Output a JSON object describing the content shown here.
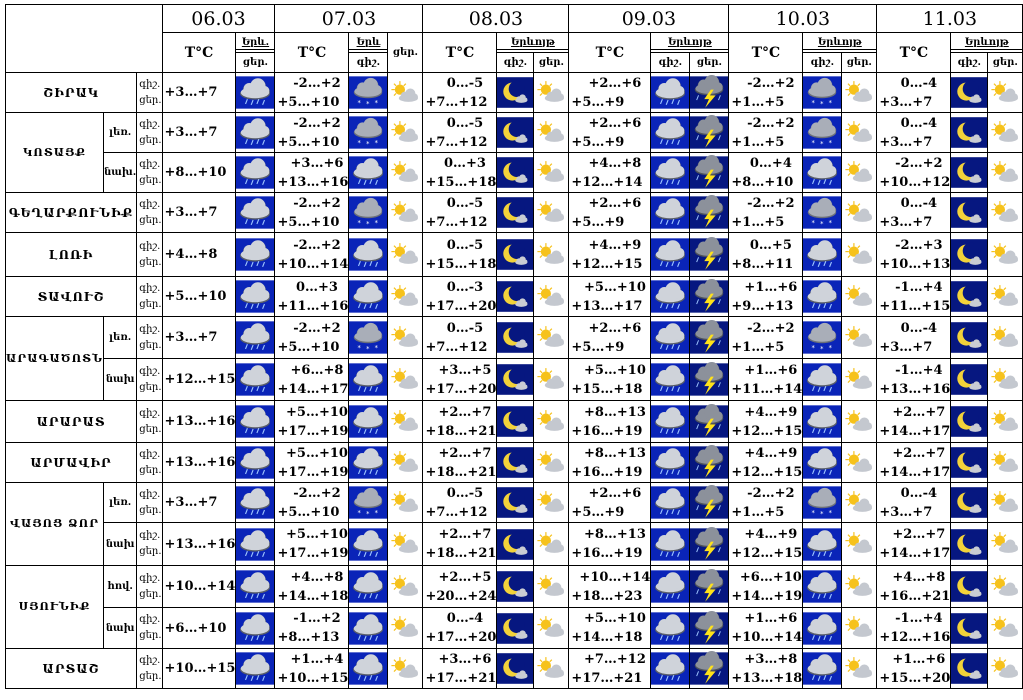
{
  "header": {
    "dates": [
      "06.03",
      "07.03",
      "08.03",
      "09.03",
      "10.03",
      "11.03"
    ],
    "temp_unit": "T°C",
    "col_label_short": "Երև.",
    "col_label_short2": "Երև",
    "col_label_long": "Երևոյթ",
    "sub_day": "գիշ.",
    "sub_night": "ցեր."
  },
  "row_labels": {
    "day": "գիշ.",
    "night": "ցեր."
  },
  "regions": [
    {
      "name": "ՇԻՐԱԿ",
      "sub": "",
      "days": [
        {
          "t1": "",
          "t2": "+3…+7",
          "icons": [
            "cloud-rain"
          ]
        },
        {
          "t1": "-2…+2",
          "t2": "+5…+10",
          "icons": [
            "snow-cloud",
            "sun-cloud"
          ]
        },
        {
          "t1": "0…-5",
          "t2": "+7…+12",
          "icons": [
            "moon",
            "sun-cloud"
          ]
        },
        {
          "t1": "+2…+6",
          "t2": "+5…+9",
          "icons": [
            "cloud-rain",
            "storm"
          ]
        },
        {
          "t1": "-2…+2",
          "t2": "+1…+5",
          "icons": [
            "snow-cloud",
            "sun-cloud"
          ]
        },
        {
          "t1": "0…-4",
          "t2": "+3…+7",
          "icons": [
            "moon",
            "sun-cloud"
          ]
        }
      ]
    },
    {
      "name": "ԿՈՏԱՅՔ",
      "sub": "լեռ.",
      "days": [
        {
          "t1": "",
          "t2": "+3…+7",
          "icons": [
            "cloud-rain"
          ]
        },
        {
          "t1": "-2…+2",
          "t2": "+5…+10",
          "icons": [
            "snow-cloud",
            "sun-cloud"
          ]
        },
        {
          "t1": "0…-5",
          "t2": "+7…+12",
          "icons": [
            "moon",
            "sun-cloud"
          ]
        },
        {
          "t1": "+2…+6",
          "t2": "+5…+9",
          "icons": [
            "cloud-rain",
            "storm"
          ]
        },
        {
          "t1": "-2…+2",
          "t2": "+1…+5",
          "icons": [
            "snow-cloud",
            "sun-cloud"
          ]
        },
        {
          "t1": "0…-4",
          "t2": "+3…+7",
          "icons": [
            "moon",
            "sun-cloud"
          ]
        }
      ]
    },
    {
      "name": "",
      "sub": "նախ.",
      "days": [
        {
          "t1": "",
          "t2": "+8…+10",
          "icons": [
            "cloud-rain"
          ]
        },
        {
          "t1": "+3…+6",
          "t2": "+13…+16",
          "icons": [
            "cloud-rain",
            "sun-cloud"
          ]
        },
        {
          "t1": "0…+3",
          "t2": "+15…+18",
          "icons": [
            "moon",
            "sun-cloud"
          ]
        },
        {
          "t1": "+4…+8",
          "t2": "+12…+14",
          "icons": [
            "cloud-rain",
            "storm"
          ]
        },
        {
          "t1": "0…+4",
          "t2": "+8…+10",
          "icons": [
            "cloud-rain",
            "sun-cloud"
          ]
        },
        {
          "t1": "-2…+2",
          "t2": "+10…+12",
          "icons": [
            "moon",
            "sun-cloud"
          ]
        }
      ]
    },
    {
      "name": "ԳԵՂԱՐՔՈՒՆԻՔ",
      "sub": "",
      "days": [
        {
          "t1": "",
          "t2": "+3…+7",
          "icons": [
            "cloud-rain"
          ]
        },
        {
          "t1": "-2…+2",
          "t2": "+5…+10",
          "icons": [
            "snow-cloud",
            "sun-cloud"
          ]
        },
        {
          "t1": "0…-5",
          "t2": "+7…+12",
          "icons": [
            "moon",
            "sun-cloud"
          ]
        },
        {
          "t1": "+2…+6",
          "t2": "+5…+9",
          "icons": [
            "cloud-rain",
            "storm"
          ]
        },
        {
          "t1": "-2…+2",
          "t2": "+1…+5",
          "icons": [
            "snow-cloud",
            "sun-cloud"
          ]
        },
        {
          "t1": "0…-4",
          "t2": "+3…+7",
          "icons": [
            "moon",
            "sun-cloud"
          ]
        }
      ]
    },
    {
      "name": "ԼՈՌԻ",
      "sub": "",
      "days": [
        {
          "t1": "",
          "t2": "+4…+8",
          "icons": [
            "cloud-rain"
          ]
        },
        {
          "t1": "-2…+2",
          "t2": "+10…+14",
          "icons": [
            "cloud-rain",
            "sun-cloud"
          ]
        },
        {
          "t1": "0…-5",
          "t2": "+15…+18",
          "icons": [
            "moon",
            "sun-cloud"
          ]
        },
        {
          "t1": "+4…+9",
          "t2": "+12…+15",
          "icons": [
            "cloud-rain",
            "storm"
          ]
        },
        {
          "t1": "0…+5",
          "t2": "+8…+11",
          "icons": [
            "cloud-rain",
            "sun-cloud"
          ]
        },
        {
          "t1": "-2…+3",
          "t2": "+10…+13",
          "icons": [
            "moon",
            "sun-cloud"
          ]
        }
      ]
    },
    {
      "name": "ՏԱՎՈՒՇ",
      "sub": "",
      "days": [
        {
          "t1": "",
          "t2": "+5…+10",
          "icons": [
            "cloud-rain"
          ]
        },
        {
          "t1": "0…+3",
          "t2": "+11…+16",
          "icons": [
            "cloud-rain",
            "sun-cloud"
          ]
        },
        {
          "t1": "0…-3",
          "t2": "+17…+20",
          "icons": [
            "moon",
            "sun-cloud"
          ]
        },
        {
          "t1": "+5…+10",
          "t2": "+13…+17",
          "icons": [
            "cloud-rain",
            "storm"
          ]
        },
        {
          "t1": "+1…+6",
          "t2": "+9…+13",
          "icons": [
            "cloud-rain",
            "sun-cloud"
          ]
        },
        {
          "t1": "-1…+4",
          "t2": "+11…+15",
          "icons": [
            "moon",
            "sun-cloud"
          ]
        }
      ]
    },
    {
      "name": "ԱՐԱԳԱԾՈՏՆ",
      "sub": "լեռ.",
      "days": [
        {
          "t1": "",
          "t2": "+3…+7",
          "icons": [
            "cloud-rain"
          ]
        },
        {
          "t1": "-2…+2",
          "t2": "+5…+10",
          "icons": [
            "snow-cloud",
            "sun-cloud"
          ]
        },
        {
          "t1": "0…-5",
          "t2": "+7…+12",
          "icons": [
            "moon",
            "sun-cloud"
          ]
        },
        {
          "t1": "+2…+6",
          "t2": "+5…+9",
          "icons": [
            "cloud-rain",
            "storm"
          ]
        },
        {
          "t1": "-2…+2",
          "t2": "+1…+5",
          "icons": [
            "snow-cloud",
            "sun-cloud"
          ]
        },
        {
          "t1": "0…-4",
          "t2": "+3…+7",
          "icons": [
            "moon",
            "sun-cloud"
          ]
        }
      ]
    },
    {
      "name": "",
      "sub": "նախ",
      "days": [
        {
          "t1": "",
          "t2": "+12…+15",
          "icons": [
            "cloud-rain"
          ]
        },
        {
          "t1": "+6…+8",
          "t2": "+14…+17",
          "icons": [
            "cloud-rain",
            "sun-cloud"
          ]
        },
        {
          "t1": "+3…+5",
          "t2": "+17…+20",
          "icons": [
            "moon",
            "sun-cloud"
          ]
        },
        {
          "t1": "+5…+10",
          "t2": "+15…+18",
          "icons": [
            "cloud-rain",
            "storm"
          ]
        },
        {
          "t1": "+1…+6",
          "t2": "+11…+14",
          "icons": [
            "cloud-rain",
            "sun-cloud"
          ]
        },
        {
          "t1": "-1…+4",
          "t2": "+13…+16",
          "icons": [
            "moon",
            "sun-cloud"
          ]
        }
      ]
    },
    {
      "name": "ԱՐԱՐԱՏ",
      "sub": "",
      "days": [
        {
          "t1": "",
          "t2": "+13…+16",
          "icons": [
            "cloud-rain"
          ]
        },
        {
          "t1": "+5…+10",
          "t2": "+17…+19",
          "icons": [
            "cloud-rain",
            "sun-cloud"
          ]
        },
        {
          "t1": "+2…+7",
          "t2": "+18…+21",
          "icons": [
            "moon",
            "sun-cloud"
          ]
        },
        {
          "t1": "+8…+13",
          "t2": "+16…+19",
          "icons": [
            "cloud-rain",
            "storm"
          ]
        },
        {
          "t1": "+4…+9",
          "t2": "+12…+15",
          "icons": [
            "cloud-rain",
            "sun-cloud"
          ]
        },
        {
          "t1": "+2…+7",
          "t2": "+14…+17",
          "icons": [
            "moon",
            "sun-cloud"
          ]
        }
      ]
    },
    {
      "name": "ԱՐՄԱՎԻՐ",
      "sub": "",
      "days": [
        {
          "t1": "",
          "t2": "+13…+16",
          "icons": [
            "cloud-rain"
          ]
        },
        {
          "t1": "+5…+10",
          "t2": "+17…+19",
          "icons": [
            "cloud-rain",
            "sun-cloud"
          ]
        },
        {
          "t1": "+2…+7",
          "t2": "+18…+21",
          "icons": [
            "moon",
            "sun-cloud"
          ]
        },
        {
          "t1": "+8…+13",
          "t2": "+16…+19",
          "icons": [
            "cloud-rain",
            "storm"
          ]
        },
        {
          "t1": "+4…+9",
          "t2": "+12…+15",
          "icons": [
            "cloud-rain",
            "sun-cloud"
          ]
        },
        {
          "t1": "+2…+7",
          "t2": "+14…+17",
          "icons": [
            "moon",
            "sun-cloud"
          ]
        }
      ]
    },
    {
      "name": "ՎԱՅՈՑ ՁՈՐ",
      "sub": "լեռ.",
      "days": [
        {
          "t1": "",
          "t2": "+3…+7",
          "icons": [
            "cloud-rain"
          ]
        },
        {
          "t1": "-2…+2",
          "t2": "+5…+10",
          "icons": [
            "snow-cloud",
            "sun-cloud"
          ]
        },
        {
          "t1": "0…-5",
          "t2": "+7…+12",
          "icons": [
            "moon",
            "sun-cloud"
          ]
        },
        {
          "t1": "+2…+6",
          "t2": "+5…+9",
          "icons": [
            "cloud-rain",
            "storm"
          ]
        },
        {
          "t1": "-2…+2",
          "t2": "+1…+5",
          "icons": [
            "snow-cloud",
            "sun-cloud"
          ]
        },
        {
          "t1": "0…-4",
          "t2": "+3…+7",
          "icons": [
            "moon",
            "sun-cloud"
          ]
        }
      ]
    },
    {
      "name": "",
      "sub": "նախ",
      "days": [
        {
          "t1": "",
          "t2": "+13…+16",
          "icons": [
            "cloud-rain"
          ]
        },
        {
          "t1": "+5…+10",
          "t2": "+17…+19",
          "icons": [
            "cloud-rain",
            "sun-cloud"
          ]
        },
        {
          "t1": "+2…+7",
          "t2": "+18…+21",
          "icons": [
            "moon",
            "sun-cloud"
          ]
        },
        {
          "t1": "+8…+13",
          "t2": "+16…+19",
          "icons": [
            "cloud-rain",
            "storm"
          ]
        },
        {
          "t1": "+4…+9",
          "t2": "+12…+15",
          "icons": [
            "cloud-rain",
            "sun-cloud"
          ]
        },
        {
          "t1": "+2…+7",
          "t2": "+14…+17",
          "icons": [
            "moon",
            "sun-cloud"
          ]
        }
      ]
    },
    {
      "name": "ՍՅՈՒՆԻՔ",
      "sub": "հով.",
      "days": [
        {
          "t1": "",
          "t2": "+10…+14",
          "icons": [
            "cloud-rain"
          ]
        },
        {
          "t1": "+4…+8",
          "t2": "+14…+18",
          "icons": [
            "cloud-rain",
            "sun-cloud"
          ]
        },
        {
          "t1": "+2…+5",
          "t2": "+20…+24",
          "icons": [
            "moon",
            "sun-cloud"
          ]
        },
        {
          "t1": "+10…+14",
          "t2": "+18…+23",
          "icons": [
            "cloud-rain",
            "storm"
          ]
        },
        {
          "t1": "+6…+10",
          "t2": "+14…+19",
          "icons": [
            "cloud-rain",
            "sun-cloud"
          ]
        },
        {
          "t1": "+4…+8",
          "t2": "+16…+21",
          "icons": [
            "moon",
            "sun-cloud"
          ]
        }
      ]
    },
    {
      "name": "",
      "sub": "նախ",
      "days": [
        {
          "t1": "",
          "t2": "+6…+10",
          "icons": [
            "cloud-rain"
          ]
        },
        {
          "t1": "-1…+2",
          "t2": "+8…+13",
          "icons": [
            "cloud-rain",
            "sun-cloud"
          ]
        },
        {
          "t1": "0…-4",
          "t2": "+17…+20",
          "icons": [
            "moon",
            "sun-cloud"
          ]
        },
        {
          "t1": "+5…+10",
          "t2": "+14…+18",
          "icons": [
            "cloud-rain",
            "storm"
          ]
        },
        {
          "t1": "+1…+6",
          "t2": "+10…+14",
          "icons": [
            "cloud-rain",
            "sun-cloud"
          ]
        },
        {
          "t1": "-1…+4",
          "t2": "+12…+16",
          "icons": [
            "moon",
            "sun-cloud"
          ]
        }
      ]
    },
    {
      "name": "ԱՐՏԱՇ",
      "sub": "",
      "days": [
        {
          "t1": "",
          "t2": "+10…+15",
          "icons": [
            "cloud-rain"
          ]
        },
        {
          "t1": "+1…+4",
          "t2": "+10…+15",
          "icons": [
            "cloud-rain",
            "sun-cloud"
          ]
        },
        {
          "t1": "+3…+6",
          "t2": "+17…+21",
          "icons": [
            "moon",
            "sun-cloud"
          ]
        },
        {
          "t1": "+7…+12",
          "t2": "+17…+21",
          "icons": [
            "cloud-rain",
            "storm"
          ]
        },
        {
          "t1": "+3…+8",
          "t2": "+13…+18",
          "icons": [
            "cloud-rain",
            "sun-cloud"
          ]
        },
        {
          "t1": "+1…+6",
          "t2": "+15…+20",
          "icons": [
            "moon",
            "sun-cloud"
          ]
        }
      ]
    }
  ],
  "colors": {
    "icon_bg": "#0a24b8",
    "icon_bg_dark": "#061780",
    "cloud": "#cfd3da",
    "sun": "#f6c21c",
    "moon": "#f2d23a",
    "bolt": "#ffe21a"
  }
}
